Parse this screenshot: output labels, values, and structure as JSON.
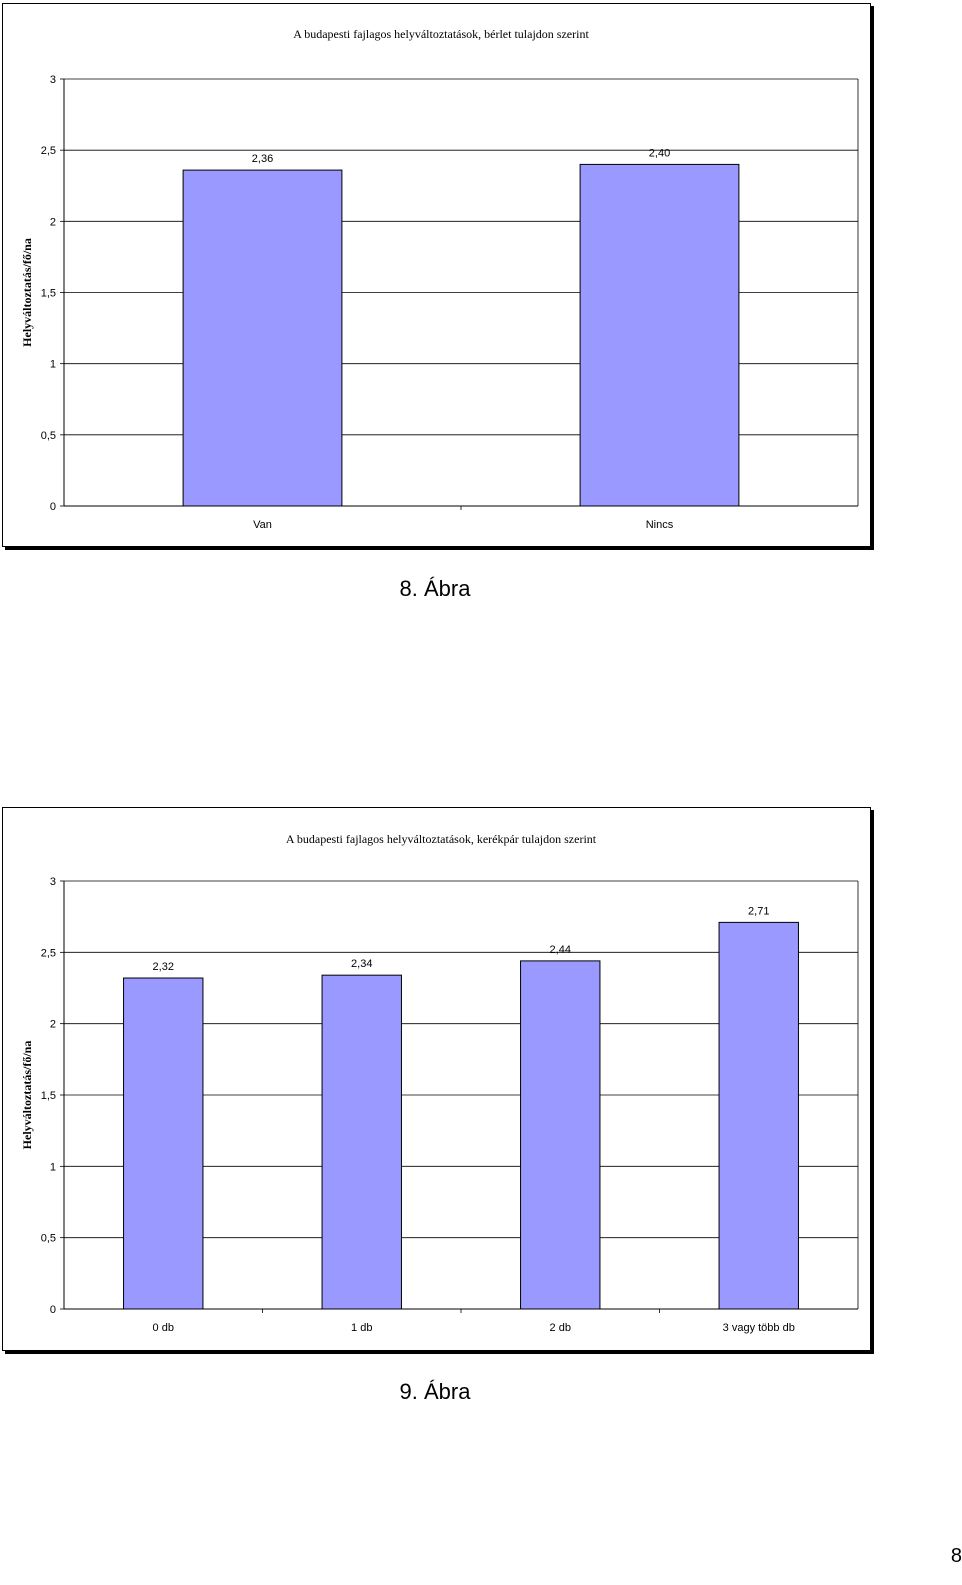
{
  "chart_data": [
    {
      "type": "bar",
      "title": "A budapesti fajlagos helyváltoztatások, bérlet tulajdon szerint",
      "ylabel": "Helyváltoztatás/fő/na",
      "xlabel": "",
      "categories": [
        "Van",
        "Nincs"
      ],
      "values": [
        2.36,
        2.4
      ],
      "value_labels": [
        "2,36",
        "2,40"
      ],
      "ylim": [
        0,
        3
      ],
      "yticks": [
        "0",
        "0,5",
        "1",
        "1,5",
        "2",
        "2,5",
        "3"
      ],
      "grid": true,
      "bar_color": "#9999ff"
    },
    {
      "type": "bar",
      "title": "A budapesti fajlagos helyváltoztatások, kerékpár tulajdon szerint",
      "ylabel": "Helyváltoztatás/fő/na",
      "xlabel": "",
      "categories": [
        "0 db",
        "1 db",
        "2 db",
        "3 vagy több db"
      ],
      "values": [
        2.32,
        2.34,
        2.44,
        2.71
      ],
      "value_labels": [
        "2,32",
        "2,34",
        "2,44",
        "2,71"
      ],
      "ylim": [
        0,
        3
      ],
      "yticks": [
        "0",
        "0,5",
        "1",
        "1,5",
        "2",
        "2,5",
        "3"
      ],
      "grid": true,
      "bar_color": "#9999ff"
    }
  ],
  "captions": [
    "8. Ábra",
    "9. Ábra"
  ],
  "page_number": "8"
}
